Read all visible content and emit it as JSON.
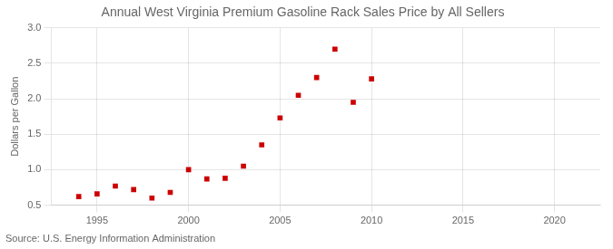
{
  "chart_data": {
    "type": "scatter",
    "title": "Annual West Virginia Premium Gasoline Rack Sales Price by All Sellers",
    "ylabel": "Dollars per Gallon",
    "annotation": "Source: U.S. Energy Information Administration",
    "x": [
      1994,
      1995,
      1996,
      1997,
      1998,
      1999,
      2000,
      2001,
      2002,
      2003,
      2004,
      2005,
      2006,
      2007,
      2008,
      2009,
      2010
    ],
    "values": [
      0.62,
      0.66,
      0.77,
      0.72,
      0.6,
      0.68,
      1.0,
      0.87,
      0.88,
      1.05,
      1.35,
      1.73,
      2.05,
      2.3,
      2.7,
      1.95,
      2.28
    ],
    "color": "#cc0000",
    "marker": "square",
    "xlim": [
      1992.5,
      2022.5
    ],
    "ylim": [
      0.5,
      3.0
    ],
    "xticks": [
      1995,
      2000,
      2005,
      2010,
      2015,
      2020
    ],
    "yticks": [
      0.5,
      {
        "value": 1,
        "label": "1.0"
      },
      1.5,
      {
        "value": 2,
        "label": "2.0"
      },
      2.5,
      {
        "value": 3,
        "label": "3.0"
      }
    ],
    "grid": true
  }
}
